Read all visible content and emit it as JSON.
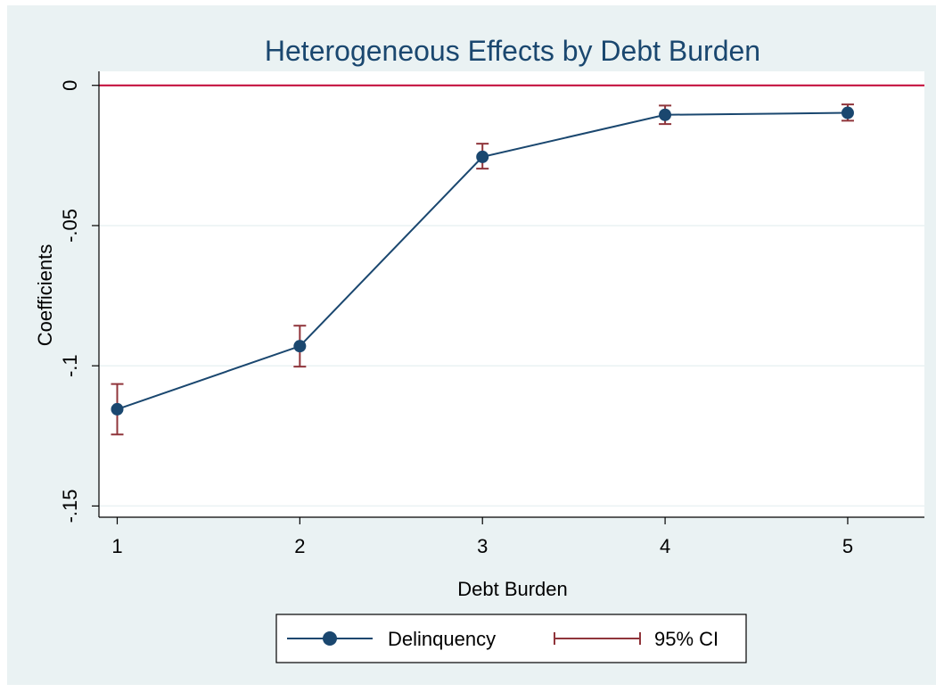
{
  "chart_data": {
    "type": "line",
    "title": "Heterogeneous Effects by Debt Burden",
    "xlabel": "Debt Burden",
    "ylabel": "Coefficients",
    "x": [
      1,
      2,
      3,
      4,
      5
    ],
    "x_tick_labels": [
      "1",
      "2",
      "3",
      "4",
      "5"
    ],
    "y_ticks": [
      0,
      -0.05,
      -0.1,
      -0.15
    ],
    "y_tick_labels": [
      "0",
      "-.05",
      "-.1",
      "-.15"
    ],
    "xlim": [
      0.9,
      5.42
    ],
    "ylim": [
      -0.154,
      0.005
    ],
    "reference_line_y": 0,
    "grid": true,
    "legend_position": "bottom",
    "series": [
      {
        "name": "Delinquency",
        "values": [
          -0.1155,
          -0.093,
          -0.0255,
          -0.0105,
          -0.0098
        ],
        "ci_lower": [
          -0.1245,
          -0.1003,
          -0.0297,
          -0.0138,
          -0.0126
        ],
        "ci_upper": [
          -0.1065,
          -0.0857,
          -0.0208,
          -0.0072,
          -0.0068
        ]
      }
    ],
    "legend": [
      {
        "label": "Delinquency",
        "kind": "line-marker"
      },
      {
        "label": "95% CI",
        "kind": "errorbar"
      }
    ],
    "colors": {
      "background": "#eaf2f3",
      "plot_background": "#ffffff",
      "series": "#1a476f",
      "ci": "#90353b",
      "reference": "#c10534",
      "grid": "#eaf2f3",
      "axis": "#000000",
      "title": "#1a476f"
    }
  }
}
